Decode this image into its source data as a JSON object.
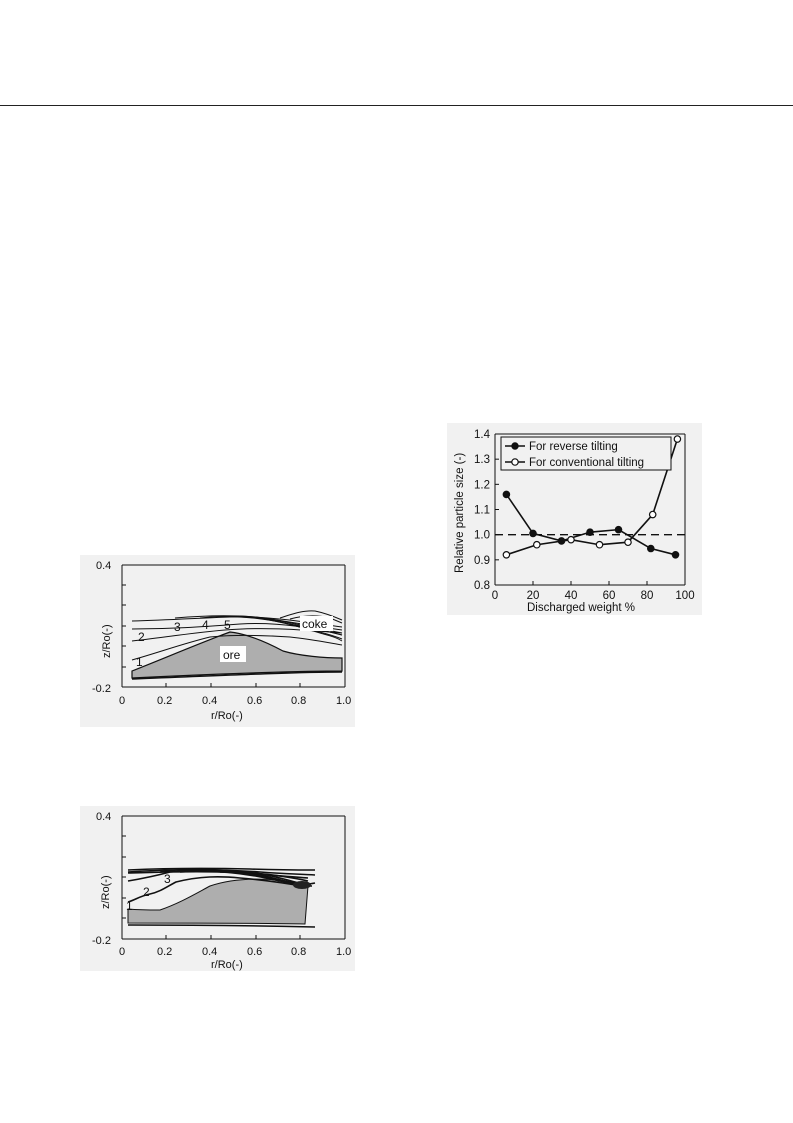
{
  "figures": {
    "upper_profile": {
      "ylabel": "z/Ro(-)",
      "xlabel": "r/Ro(-)",
      "y_ticks": [
        "0.4",
        "-0.2"
      ],
      "x_ticks": [
        "0",
        "0.2",
        "0.4",
        "0.6",
        "0.8",
        "1.0"
      ],
      "layer_numbers": [
        "1",
        "2",
        "3",
        "4",
        "5"
      ],
      "label_ore": "ore",
      "label_coke": "coke"
    },
    "lower_profile": {
      "ylabel": "z/Ro(-)",
      "xlabel": "r/Ro(-)",
      "y_ticks": [
        "0.4",
        "-0.2"
      ],
      "x_ticks": [
        "0",
        "0.2",
        "0.4",
        "0.6",
        "0.8",
        "1.0"
      ],
      "layer_numbers": [
        "1",
        "2",
        "3"
      ]
    }
  },
  "chart_data": {
    "type": "line",
    "xlabel": "Discharged weight %",
    "ylabel": "Relative particle size (-)",
    "xlim": [
      0,
      100
    ],
    "ylim": [
      0.8,
      1.4
    ],
    "x_ticks": [
      0,
      20,
      40,
      60,
      80,
      100
    ],
    "y_ticks": [
      0.8,
      0.9,
      1.0,
      1.1,
      1.2,
      1.3,
      1.4
    ],
    "x_tick_labels": [
      "0",
      "20",
      "40",
      "60",
      "80",
      "100"
    ],
    "y_tick_labels": [
      "0.8",
      "0.9",
      "1.0",
      "1.1",
      "1.2",
      "1.3",
      "1.4"
    ],
    "reference_line": 1.0,
    "legend_position": "top-left",
    "series": [
      {
        "name": "For reverse tilting",
        "marker": "filled",
        "x": [
          6,
          20,
          35,
          50,
          65,
          82,
          95
        ],
        "y": [
          1.16,
          1.005,
          0.975,
          1.01,
          1.02,
          0.945,
          0.92
        ]
      },
      {
        "name": "For conventional tilting",
        "marker": "open",
        "x": [
          6,
          22,
          40,
          55,
          70,
          83,
          96
        ],
        "y": [
          0.92,
          0.96,
          0.98,
          0.96,
          0.97,
          1.08,
          1.38
        ]
      }
    ]
  }
}
